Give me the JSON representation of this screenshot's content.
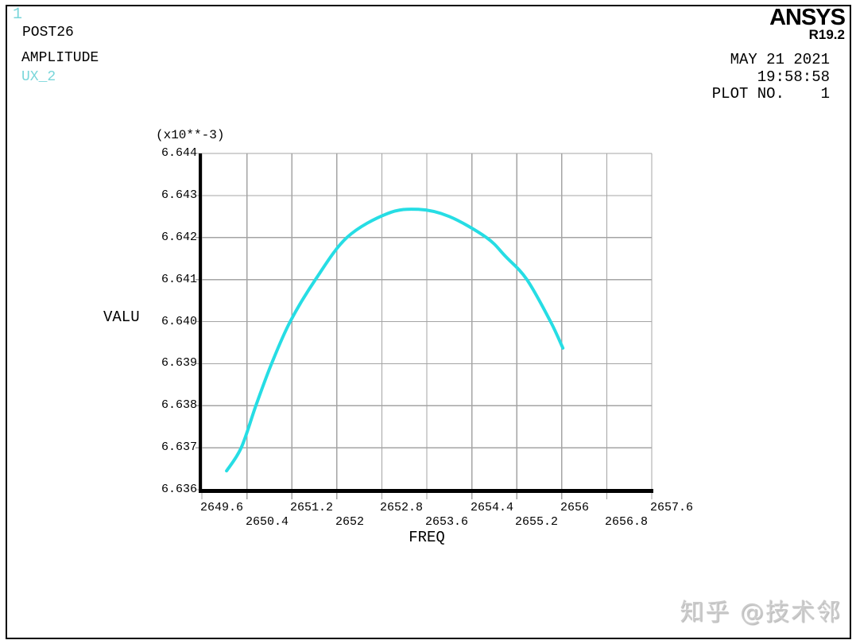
{
  "header": {
    "plot_id": "1",
    "analysis_type": "POST26",
    "result_type": "AMPLITUDE",
    "series_label": "UX_2",
    "brand": "ANSYS",
    "version": "R19.2",
    "date": "MAY 21 2021",
    "time": "19:58:58",
    "plot_no": "PLOT NO.    1"
  },
  "chart_data": {
    "type": "line",
    "xlabel": "FREQ",
    "ylabel": "VALU",
    "y_multiplier_label": "(x10**-3)",
    "grid": true,
    "xlim": [
      2649.6,
      2657.6
    ],
    "ylim": [
      6.636,
      6.644
    ],
    "x_ticks": [
      2649.6,
      2650.4,
      2651.2,
      2652,
      2652.8,
      2653.6,
      2654.4,
      2655.2,
      2656,
      2656.8,
      2657.6
    ],
    "x_tick_labels": [
      "2649.6",
      "2650.4",
      "2651.2",
      "2652",
      "2652.8",
      "2653.6",
      "2654.4",
      "2655.2",
      "2656",
      "2656.8",
      "2657.6"
    ],
    "y_ticks": [
      6.636,
      6.637,
      6.638,
      6.639,
      6.64,
      6.641,
      6.642,
      6.643,
      6.644
    ],
    "y_tick_labels": [
      "6.636",
      "6.637",
      "6.638",
      "6.639",
      "6.640",
      "6.641",
      "6.642",
      "6.643",
      "6.644"
    ],
    "series": [
      {
        "name": "UX_2",
        "color": "#26dde4",
        "x": [
          2650.04,
          2650.3,
          2650.56,
          2650.84,
          2651.17,
          2651.62,
          2652.18,
          2652.9,
          2653.45,
          2654.0,
          2654.66,
          2655.0,
          2655.38,
          2655.8,
          2656.02
        ],
        "y": [
          6.63645,
          6.637,
          6.638,
          6.639,
          6.64,
          6.641,
          6.642,
          6.64257,
          6.64267,
          6.6425,
          6.642,
          6.64155,
          6.641,
          6.64,
          6.63937
        ]
      }
    ]
  },
  "colors": {
    "curve": "#26dde4",
    "accent_text": "#79d6da",
    "grid": "#a4a4a4",
    "axis": "#000000",
    "watermark": "#cbcbcb"
  },
  "watermark": "知乎 @技术邻"
}
